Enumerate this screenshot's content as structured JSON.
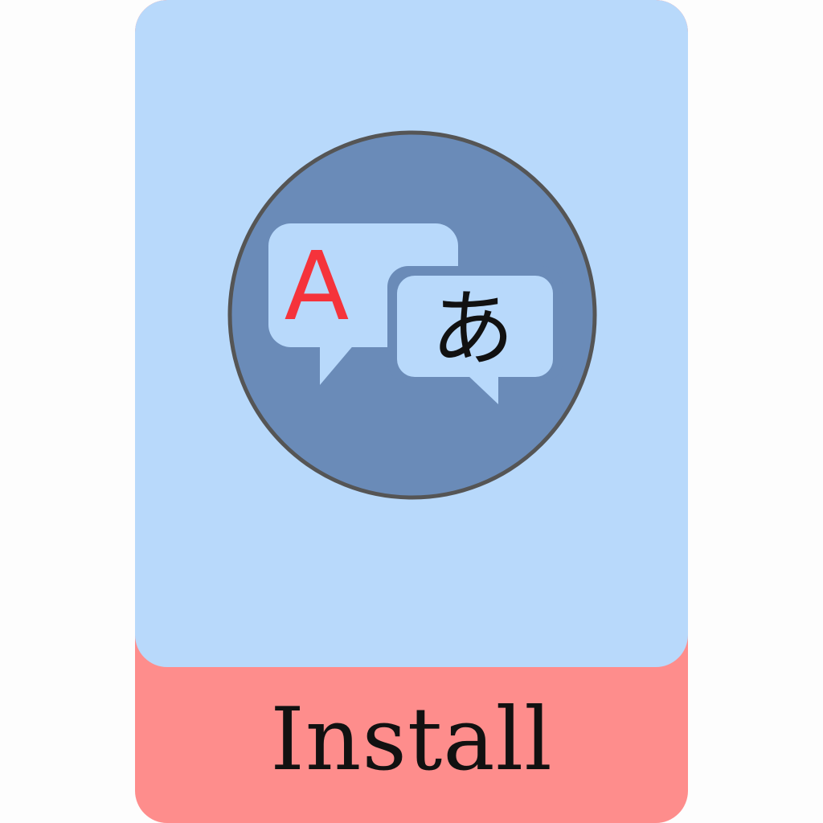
{
  "app": {
    "icon": "translate-speech-bubbles-icon",
    "glyph_latin": "A",
    "glyph_kana": "あ"
  },
  "action": {
    "install_label": "Install"
  },
  "colors": {
    "page_background": "#fdfdfd",
    "card_top": "#b8d9fb",
    "card_bottom": "#fe8d8c",
    "icon_circle": "#6a8bb8",
    "icon_circle_border": "#555555",
    "bubble": "#b8d9fb",
    "latin_glyph": "#f5333b",
    "kana_glyph": "#111111"
  }
}
